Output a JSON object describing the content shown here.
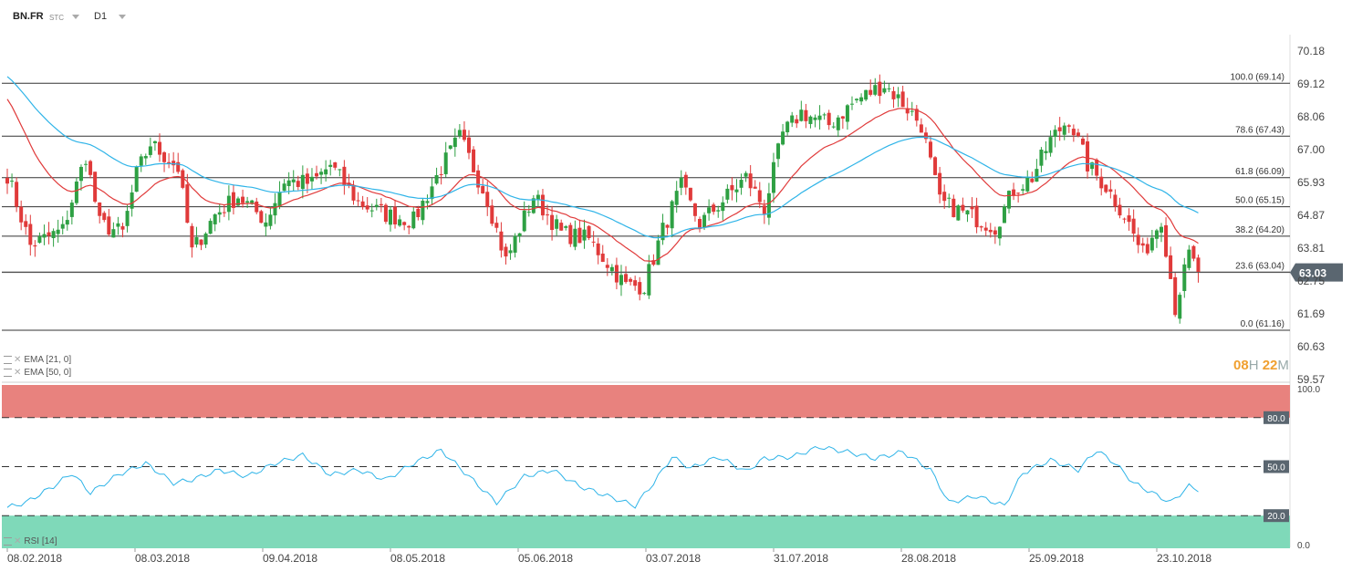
{
  "toolbar": {
    "symbol": "BN.FR",
    "instrument_type": "STC",
    "timeframe": "D1"
  },
  "indicators": [
    {
      "label": "EMA",
      "params": "[21, 0]",
      "color": "#e03a3a"
    },
    {
      "label": "EMA",
      "params": "[50, 0]",
      "color": "#2fb4e8"
    }
  ],
  "timer": {
    "hours": "08",
    "hours_unit": "H",
    "minutes": "22",
    "minutes_unit": "M"
  },
  "rsi": {
    "label": "RSI",
    "params": "[14]",
    "upper": 80,
    "mid": 50,
    "lower": 20,
    "upper_label": "80.0",
    "mid_label": "50.0",
    "lower_label": "20.0",
    "max_label": "100.0",
    "min_label": "0.0"
  },
  "chart_data": [
    {
      "type": "candlestick",
      "y_ticks": [
        "70.18",
        "69.12",
        "68.06",
        "67.00",
        "65.93",
        "64.87",
        "63.81",
        "62.75",
        "61.69",
        "60.63",
        "59.57"
      ],
      "ylim": [
        59.57,
        70.18
      ],
      "x_ticks": [
        "08.02.2018",
        "08.03.2018",
        "09.04.2018",
        "08.05.2018",
        "05.06.2018",
        "03.07.2018",
        "31.07.2018",
        "28.08.2018",
        "25.09.2018",
        "23.10.2018"
      ],
      "last_price": "63.03",
      "up_color": "#2ea043",
      "down_color": "#e03a3a",
      "fibonacci": [
        {
          "label": "100.0 (69.14)",
          "value": 69.14
        },
        {
          "label": "78.6 (67.43)",
          "value": 67.43
        },
        {
          "label": "61.8 (66.09)",
          "value": 66.09
        },
        {
          "label": "50.0 (65.15)",
          "value": 65.15
        },
        {
          "label": "38.2 (64.20)",
          "value": 64.2
        },
        {
          "label": "23.6 (63.04)",
          "value": 63.04
        },
        {
          "label": "0.0 (61.16)",
          "value": 61.16
        }
      ],
      "anchors": [
        [
          0,
          66.2
        ],
        [
          5,
          63.9
        ],
        [
          12,
          64.4
        ],
        [
          17,
          66.8
        ],
        [
          20,
          64.6
        ],
        [
          25,
          64.3
        ],
        [
          28,
          66.2
        ],
        [
          31,
          67.2
        ],
        [
          37,
          66.4
        ],
        [
          40,
          63.7
        ],
        [
          45,
          64.9
        ],
        [
          50,
          65.5
        ],
        [
          56,
          64.7
        ],
        [
          60,
          66.0
        ],
        [
          66,
          65.9
        ],
        [
          70,
          66.5
        ],
        [
          76,
          65.3
        ],
        [
          82,
          64.9
        ],
        [
          88,
          64.7
        ],
        [
          94,
          66.4
        ],
        [
          98,
          67.4
        ],
        [
          104,
          65.4
        ],
        [
          108,
          63.4
        ],
        [
          114,
          65.5
        ],
        [
          120,
          64.3
        ],
        [
          126,
          64.1
        ],
        [
          134,
          62.6
        ],
        [
          138,
          62.6
        ],
        [
          142,
          64.4
        ],
        [
          146,
          65.8
        ],
        [
          150,
          64.6
        ],
        [
          154,
          65.2
        ],
        [
          160,
          66.1
        ],
        [
          164,
          65.1
        ],
        [
          168,
          67.5
        ],
        [
          172,
          68.2
        ],
        [
          178,
          67.8
        ],
        [
          184,
          68.6
        ],
        [
          190,
          69.1
        ],
        [
          194,
          68.5
        ],
        [
          198,
          67.8
        ],
        [
          202,
          65.3
        ],
        [
          208,
          64.9
        ],
        [
          214,
          64.5
        ],
        [
          218,
          65.7
        ],
        [
          222,
          66.1
        ],
        [
          226,
          67.3
        ],
        [
          230,
          68.0
        ],
        [
          234,
          66.5
        ],
        [
          238,
          65.8
        ],
        [
          242,
          64.9
        ],
        [
          246,
          63.6
        ],
        [
          250,
          64.8
        ],
        [
          253,
          61.9
        ],
        [
          256,
          63.6
        ],
        [
          258,
          63.03
        ]
      ]
    },
    {
      "type": "line",
      "name": "RSI [14]",
      "ylim": [
        0,
        100
      ],
      "anchors": [
        [
          0,
          25
        ],
        [
          4,
          28
        ],
        [
          10,
          38
        ],
        [
          14,
          46
        ],
        [
          18,
          34
        ],
        [
          24,
          45
        ],
        [
          30,
          52
        ],
        [
          36,
          40
        ],
        [
          40,
          42
        ],
        [
          46,
          48
        ],
        [
          52,
          44
        ],
        [
          58,
          52
        ],
        [
          64,
          57
        ],
        [
          70,
          45
        ],
        [
          76,
          48
        ],
        [
          82,
          42
        ],
        [
          88,
          52
        ],
        [
          94,
          60
        ],
        [
          100,
          44
        ],
        [
          106,
          28
        ],
        [
          112,
          44
        ],
        [
          118,
          48
        ],
        [
          124,
          38
        ],
        [
          130,
          32
        ],
        [
          136,
          26
        ],
        [
          140,
          40
        ],
        [
          144,
          56
        ],
        [
          148,
          49
        ],
        [
          154,
          56
        ],
        [
          160,
          47
        ],
        [
          164,
          55
        ],
        [
          170,
          56
        ],
        [
          176,
          62
        ],
        [
          182,
          59
        ],
        [
          188,
          55
        ],
        [
          194,
          59
        ],
        [
          200,
          48
        ],
        [
          204,
          28
        ],
        [
          210,
          32
        ],
        [
          216,
          26
        ],
        [
          220,
          46
        ],
        [
          226,
          54
        ],
        [
          232,
          48
        ],
        [
          236,
          60
        ],
        [
          240,
          52
        ],
        [
          244,
          40
        ],
        [
          248,
          34
        ],
        [
          252,
          28
        ],
        [
          256,
          38
        ],
        [
          258,
          36
        ]
      ]
    }
  ]
}
